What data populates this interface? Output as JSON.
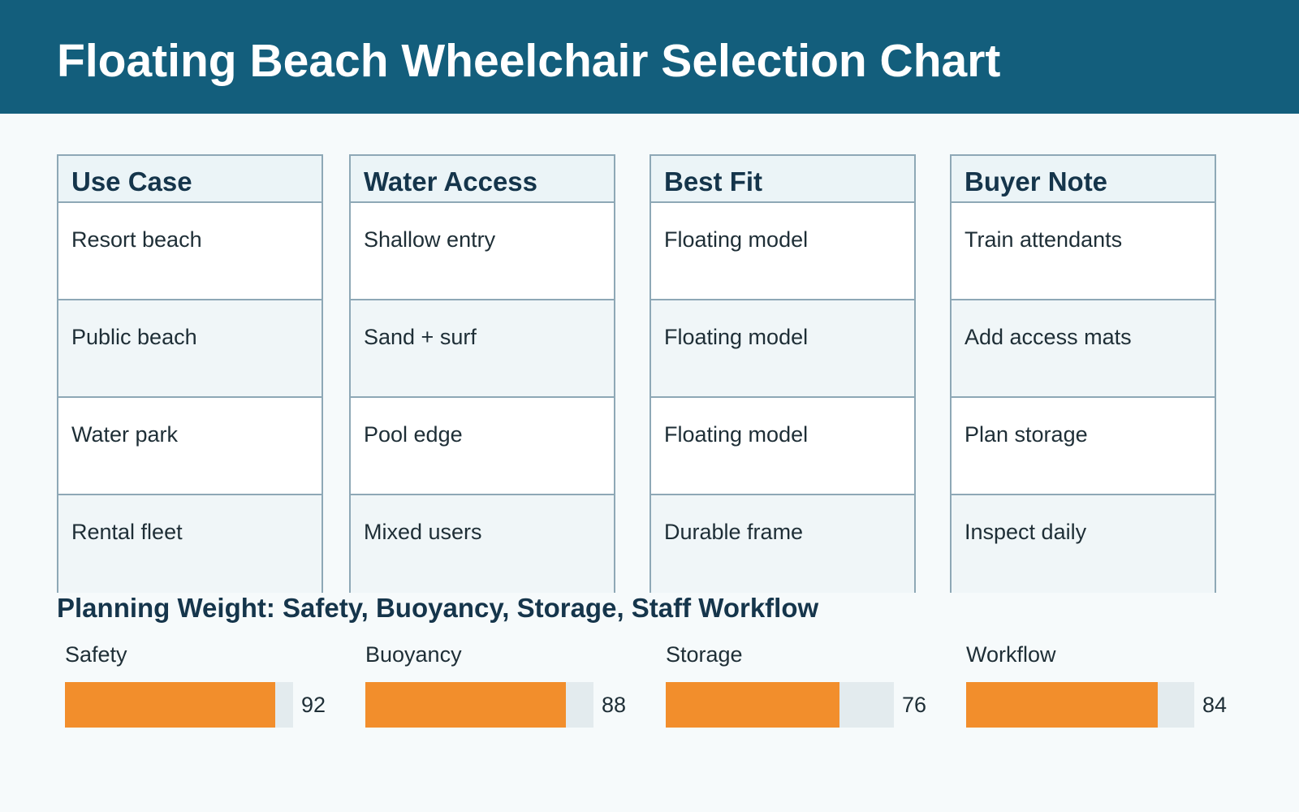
{
  "title": "Floating Beach Wheelchair Selection Chart",
  "table": {
    "columns": [
      {
        "header": "Use Case",
        "cells": [
          "Resort beach",
          "Public beach",
          "Water park",
          "Rental fleet"
        ]
      },
      {
        "header": "Water Access",
        "cells": [
          "Shallow entry",
          "Sand + surf",
          "Pool edge",
          "Mixed users"
        ]
      },
      {
        "header": "Best Fit",
        "cells": [
          "Floating model",
          "Floating model",
          "Floating model",
          "Durable frame"
        ]
      },
      {
        "header": "Buyer Note",
        "cells": [
          "Train attendants",
          "Add access mats",
          "Plan storage",
          "Inspect daily"
        ]
      }
    ]
  },
  "weights": {
    "title": "Planning Weight: Safety, Buoyancy, Storage, Staff Workflow",
    "max": 100,
    "items": [
      {
        "label": "Safety",
        "value": 92
      },
      {
        "label": "Buoyancy",
        "value": 88
      },
      {
        "label": "Storage",
        "value": 76
      },
      {
        "label": "Workflow",
        "value": 84
      }
    ]
  },
  "colors": {
    "header_bg": "#135e7c",
    "bar_fill": "#f28e2c",
    "bar_track": "#e3ebee",
    "border": "#8ea8b6"
  }
}
